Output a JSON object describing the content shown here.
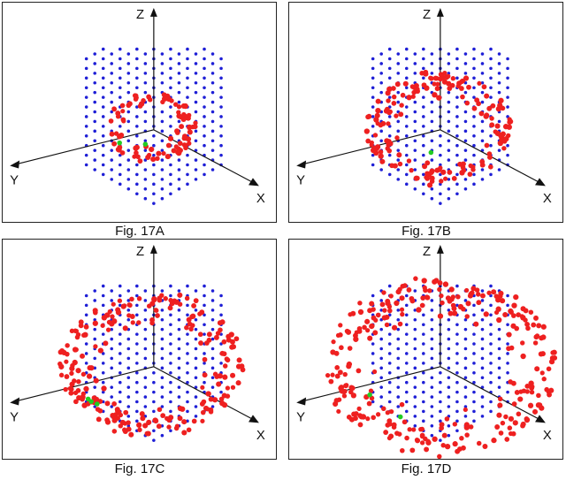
{
  "figures": [
    {
      "caption": "Fig. 17A",
      "sphere_radius": 0.18,
      "red_count": 90,
      "green_count": 2
    },
    {
      "caption": "Fig. 17B",
      "sphere_radius": 0.45,
      "red_count": 170,
      "green_count": 1
    },
    {
      "caption": "Fig. 17C",
      "sphere_radius": 0.65,
      "red_count": 230,
      "green_count": 3
    },
    {
      "caption": "Fig. 17D",
      "sphere_radius": 0.88,
      "red_count": 290,
      "green_count": 2
    }
  ],
  "axes": {
    "x": "X",
    "y": "Y",
    "z": "Z"
  },
  "colors": {
    "lattice": "#1f1fd6",
    "sphere": "#ee2020",
    "nucleus": "#22cc22",
    "axis": "#111111",
    "frame": "#222222"
  }
}
